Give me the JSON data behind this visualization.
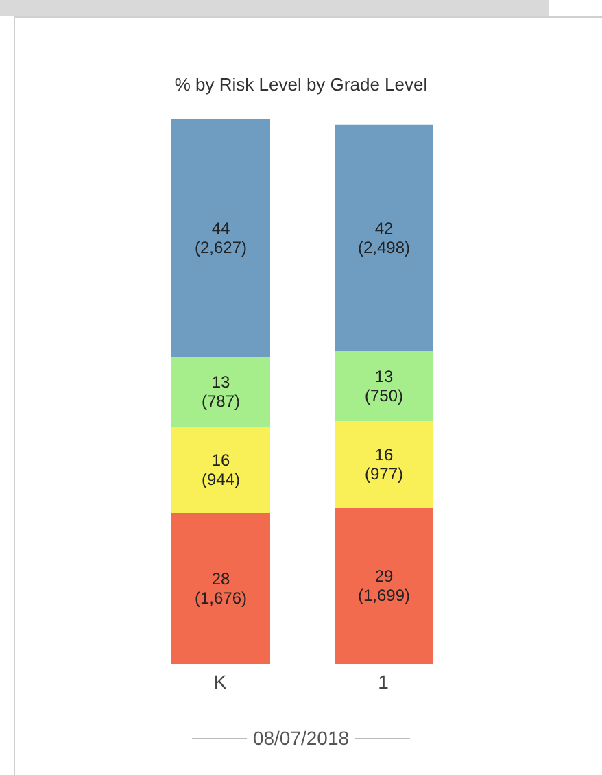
{
  "chart_data": {
    "type": "bar",
    "title": "% by Risk Level by Grade Level",
    "xlabel": "08/07/2018",
    "categories": [
      "K",
      "1"
    ],
    "stacked": true,
    "legend": false,
    "grid": false,
    "series": [
      {
        "color": "#f36b4f",
        "values": [
          28,
          29
        ],
        "value_labels": [
          "28\n(1,676)",
          "29\n(1,699)"
        ]
      },
      {
        "color": "#f8f056",
        "values": [
          16,
          16
        ],
        "value_labels": [
          "16\n(944)",
          "16\n(977)"
        ]
      },
      {
        "color": "#a6ee8c",
        "values": [
          13,
          13
        ],
        "value_labels": [
          "13\n(787)",
          "13\n(750)"
        ]
      },
      {
        "color": "#6f9dc2",
        "values": [
          44,
          42
        ],
        "value_labels": [
          "44\n(2,627)",
          "42\n(2,498)"
        ]
      }
    ]
  }
}
